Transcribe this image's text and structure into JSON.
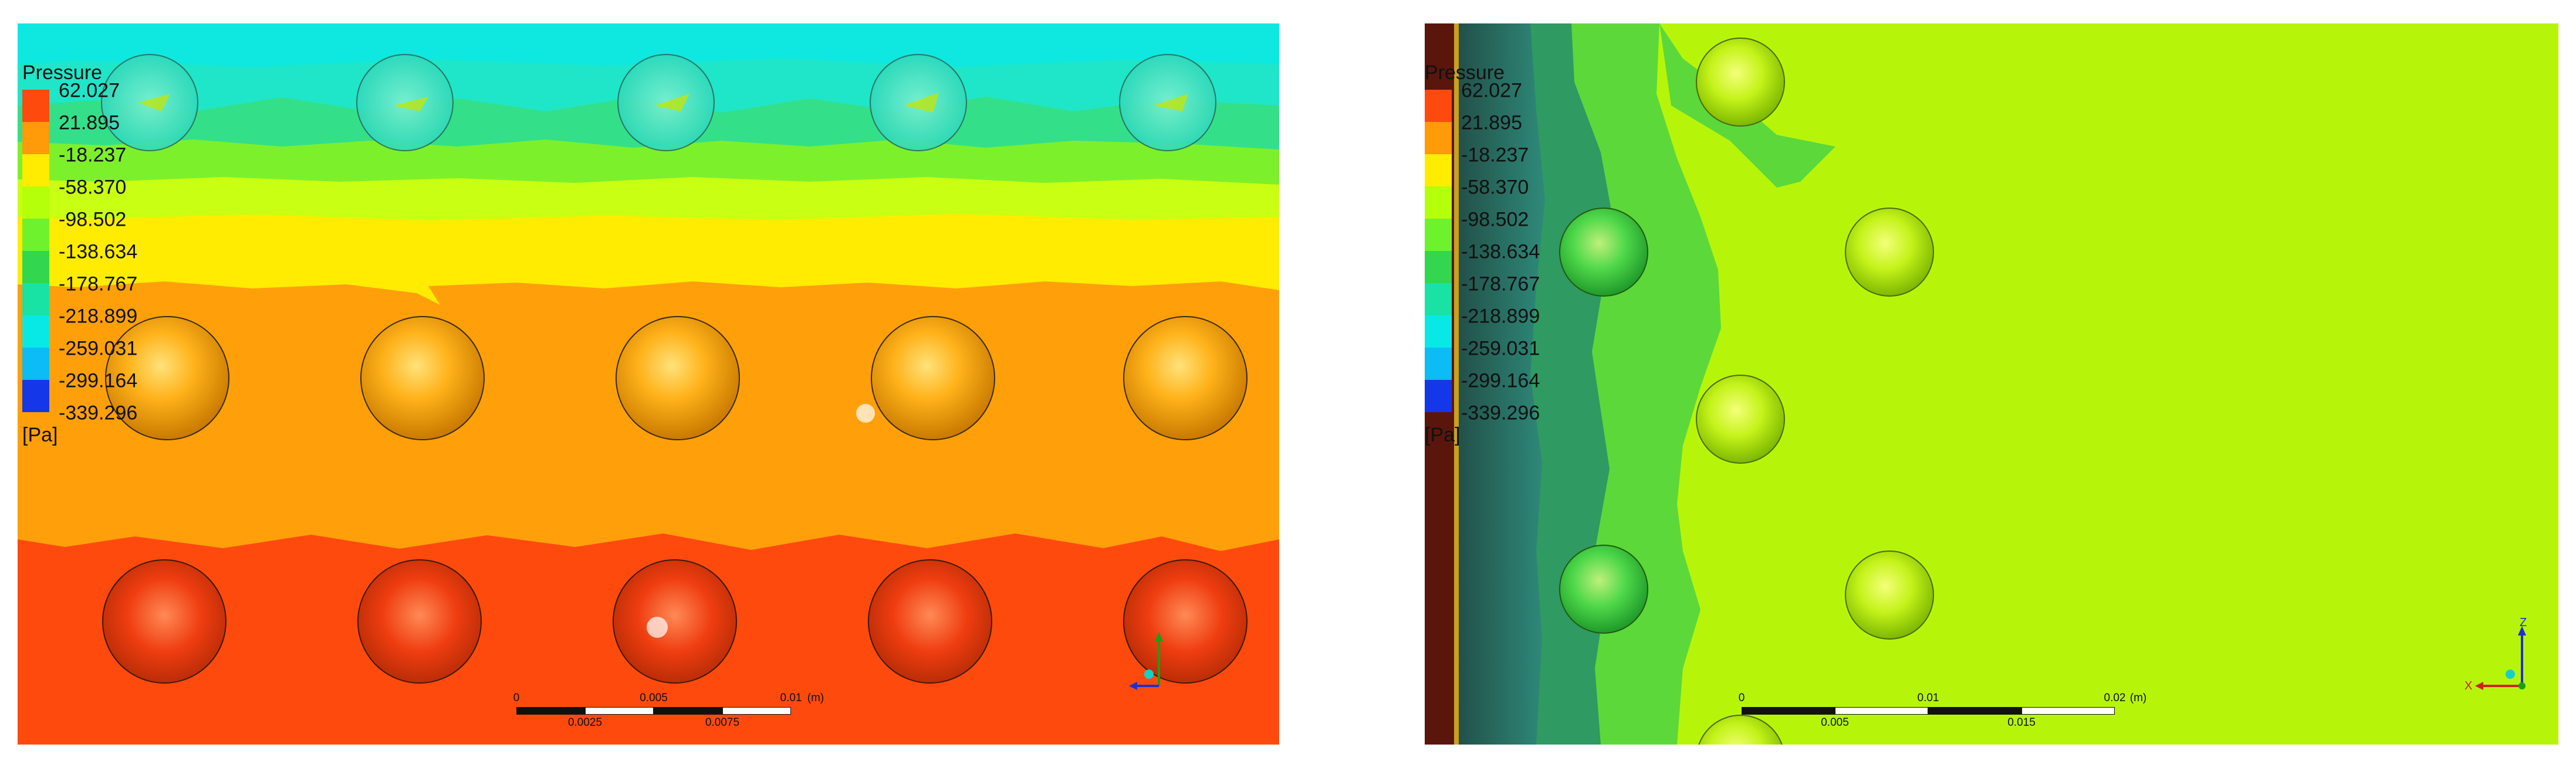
{
  "colors": {
    "legend_bands": [
      "#ff4a0e",
      "#ff9a09",
      "#ffec00",
      "#b6ff0a",
      "#6ef22e",
      "#32d64f",
      "#18e3a5",
      "#08e9e6",
      "#0bbcf5",
      "#0a72f5",
      "#1437e8"
    ]
  },
  "left_panel": {
    "legend": {
      "title": "Pressure",
      "values": [
        "62.027",
        "21.895",
        "-18.237",
        "-58.370",
        "-98.502",
        "-138.634",
        "-178.767",
        "-218.899",
        "-259.031",
        "-299.164",
        "-339.296"
      ],
      "unit": "[Pa]"
    },
    "scalebar": {
      "top_labels": [
        "0",
        "0.005",
        "0.01",
        "(m)"
      ],
      "bottom_labels": [
        "0.0025",
        "0.0075"
      ]
    }
  },
  "right_panel": {
    "legend": {
      "title": "Pressure",
      "values": [
        "62.027",
        "21.895",
        "-18.237",
        "-58.370",
        "-98.502",
        "-138.634",
        "-178.767",
        "-218.899",
        "-259.031",
        "-299.164",
        "-339.296"
      ],
      "unit": "[Pa]"
    },
    "scalebar": {
      "top_labels": [
        "0",
        "0.01",
        "0.02",
        "(m)"
      ],
      "bottom_labels": [
        "0.005",
        "0.015"
      ]
    },
    "triad": {
      "axis_up": "Z",
      "axis_left": "X"
    }
  }
}
